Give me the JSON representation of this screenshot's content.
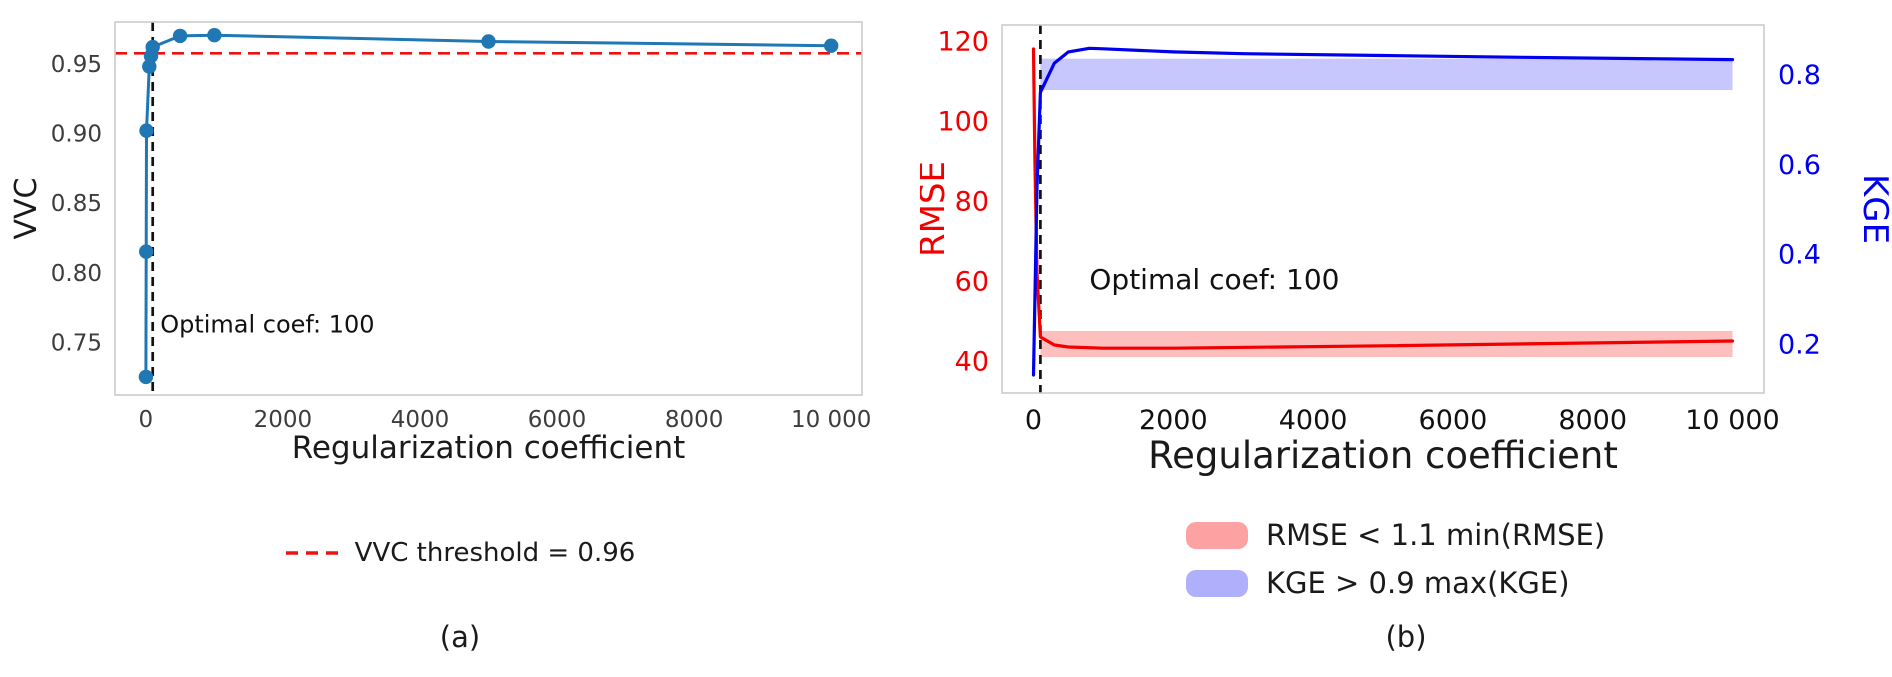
{
  "figure": {
    "panels": [
      {
        "caption": "(a)",
        "legend": [
          {
            "type": "dashed-line",
            "color": "#ee1111",
            "label": "VVC threshold = 0.96"
          }
        ]
      },
      {
        "caption": "(b)",
        "legend": [
          {
            "type": "patch",
            "color": "rgba(250,85,85,0.55)",
            "label": "RMSE < 1.1 min(RMSE)"
          },
          {
            "type": "patch",
            "color": "rgba(95,95,250,0.50)",
            "label": "KGE > 0.9 max(KGE)"
          }
        ]
      }
    ]
  },
  "chart_data": [
    {
      "type": "line",
      "title": "",
      "xlabel": "Regularization coefficient",
      "ylabel": "VVC",
      "xlim": [
        -450,
        10450
      ],
      "ylim": [
        0.712,
        0.98
      ],
      "xticks": [
        0,
        2000,
        4000,
        6000,
        8000,
        10000
      ],
      "xtick_labels": [
        "0",
        "2000",
        "4000",
        "6000",
        "8000",
        "10 000"
      ],
      "yticks": [
        0.75,
        0.8,
        0.85,
        0.9,
        0.95
      ],
      "ytick_labels": [
        "0.75",
        "0.80",
        "0.85",
        "0.90",
        "0.95"
      ],
      "grid": false,
      "series": [
        {
          "name": "VVC",
          "color": "#1f77b4",
          "marker": "circle",
          "x": [
            1,
            5,
            10,
            50,
            75,
            100,
            500,
            1000,
            5000,
            10000
          ],
          "y": [
            0.725,
            0.815,
            0.902,
            0.948,
            0.9555,
            0.962,
            0.97,
            0.9705,
            0.966,
            0.963
          ]
        }
      ],
      "hlines": [
        {
          "y": 0.9575,
          "color": "#ee1111",
          "style": "dashed",
          "label": "VVC threshold = 0.96"
        }
      ],
      "vlines": [
        {
          "x": 100,
          "color": "#111111",
          "style": "dashed",
          "label": "Optimal coef: 100"
        }
      ],
      "annotations": [
        {
          "text": "Optimal coef: 100",
          "x": 210,
          "y": 0.757
        }
      ]
    },
    {
      "type": "line",
      "title": "",
      "xlabel": "Regularization coefficient",
      "xlim": [
        -450,
        10450
      ],
      "xticks": [
        0,
        2000,
        4000,
        6000,
        8000,
        10000
      ],
      "xtick_labels": [
        "0",
        "2000",
        "4000",
        "6000",
        "8000",
        "10 000"
      ],
      "grid": false,
      "y_left": {
        "label": "RMSE",
        "color": "#f20000",
        "lim": [
          32,
          124
        ],
        "ticks": [
          40,
          60,
          80,
          100,
          120
        ],
        "tick_labels": [
          "40",
          "60",
          "80",
          "100",
          "120"
        ]
      },
      "y_right": {
        "label": "KGE",
        "color": "#0000ee",
        "lim": [
          0.09,
          0.91
        ],
        "ticks": [
          0.2,
          0.4,
          0.6,
          0.8
        ],
        "tick_labels": [
          "0.2",
          "0.4",
          "0.6",
          "0.8"
        ]
      },
      "series": [
        {
          "name": "RMSE",
          "axis": "left",
          "color": "#f20000",
          "x": [
            1,
            20,
            50,
            100,
            300,
            500,
            1000,
            2000,
            5000,
            10000
          ],
          "y": [
            118,
            90,
            62,
            46,
            44,
            43.5,
            43.2,
            43.2,
            43.8,
            45
          ]
        },
        {
          "name": "KGE",
          "axis": "right",
          "color": "#0000ee",
          "x": [
            1,
            20,
            50,
            100,
            300,
            500,
            800,
            1000,
            2000,
            3000,
            5000,
            7000,
            10000
          ],
          "y": [
            0.13,
            0.3,
            0.55,
            0.76,
            0.825,
            0.85,
            0.858,
            0.857,
            0.85,
            0.846,
            0.842,
            0.838,
            0.833
          ]
        }
      ],
      "bands": [
        {
          "axis": "left",
          "x0": 100,
          "x1": 10000,
          "y0": 41,
          "y1": 47.5,
          "color": "rgba(250,70,70,0.35)",
          "label": "RMSE < 1.1 min(RMSE)"
        },
        {
          "axis": "right",
          "x0": 100,
          "x1": 10000,
          "y0": 0.765,
          "y1": 0.835,
          "color": "rgba(80,80,250,0.32)",
          "label": "KGE > 0.9 max(KGE)"
        }
      ],
      "vlines": [
        {
          "x": 100,
          "color": "#111111",
          "style": "dashed",
          "label": "Optimal coef: 100"
        }
      ],
      "annotations": [
        {
          "text": "Optimal coef: 100",
          "x": 800,
          "y": 58,
          "axis": "left"
        }
      ]
    }
  ]
}
